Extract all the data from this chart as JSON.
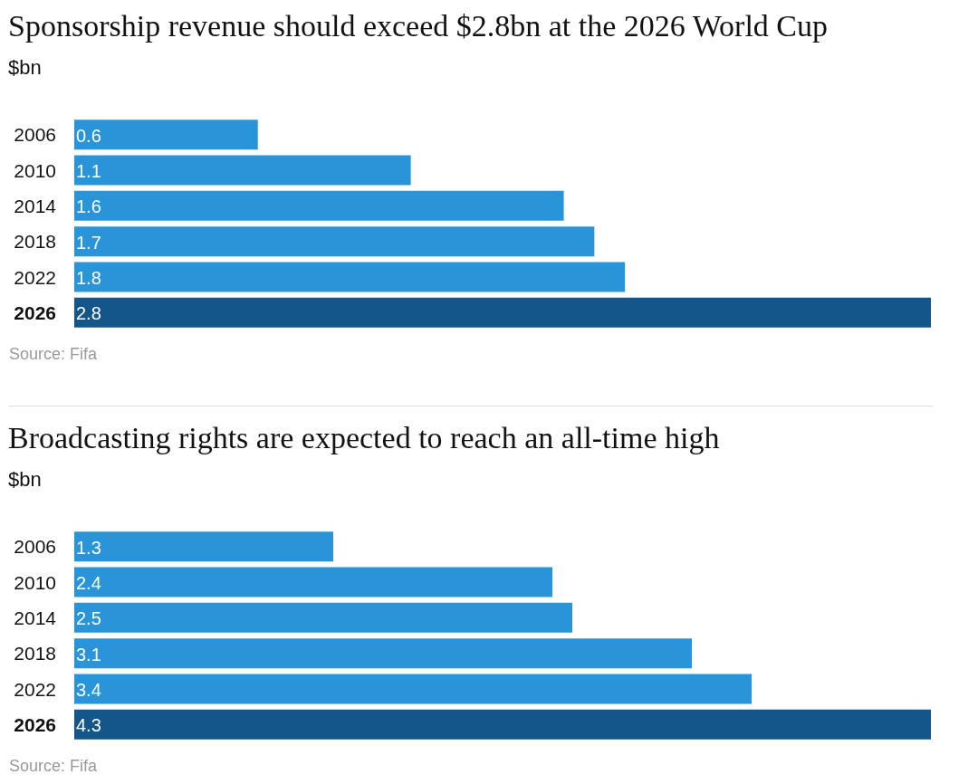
{
  "chart_data": [
    {
      "type": "bar",
      "orientation": "horizontal",
      "title": "Sponsorship revenue should exceed $2.8bn at the 2026 World Cup",
      "subtitle": "$bn",
      "categories": [
        "2006",
        "2010",
        "2014",
        "2018",
        "2022",
        "2026"
      ],
      "values": [
        0.6,
        1.1,
        1.6,
        1.7,
        1.8,
        2.8
      ],
      "colors": [
        "#2a94d8",
        "#2a94d8",
        "#2a94d8",
        "#2a94d8",
        "#2a94d8",
        "#14568a"
      ],
      "xlim": [
        0,
        2.8
      ],
      "tick_labels": "y",
      "data_labels": true,
      "grid": false,
      "annotations": [
        "Source: Fifa"
      ]
    },
    {
      "type": "bar",
      "orientation": "horizontal",
      "title": "Broadcasting rights are expected to reach an all-time high",
      "subtitle": "$bn",
      "categories": [
        "2006",
        "2010",
        "2014",
        "2018",
        "2022",
        "2026"
      ],
      "values": [
        1.3,
        2.4,
        2.5,
        3.1,
        3.4,
        4.3
      ],
      "colors": [
        "#2a94d8",
        "#2a94d8",
        "#2a94d8",
        "#2a94d8",
        "#2a94d8",
        "#14568a"
      ],
      "xlim": [
        0,
        4.3
      ],
      "tick_labels": "y",
      "data_labels": true,
      "grid": false,
      "annotations": [
        "Source: Fifa"
      ]
    }
  ]
}
